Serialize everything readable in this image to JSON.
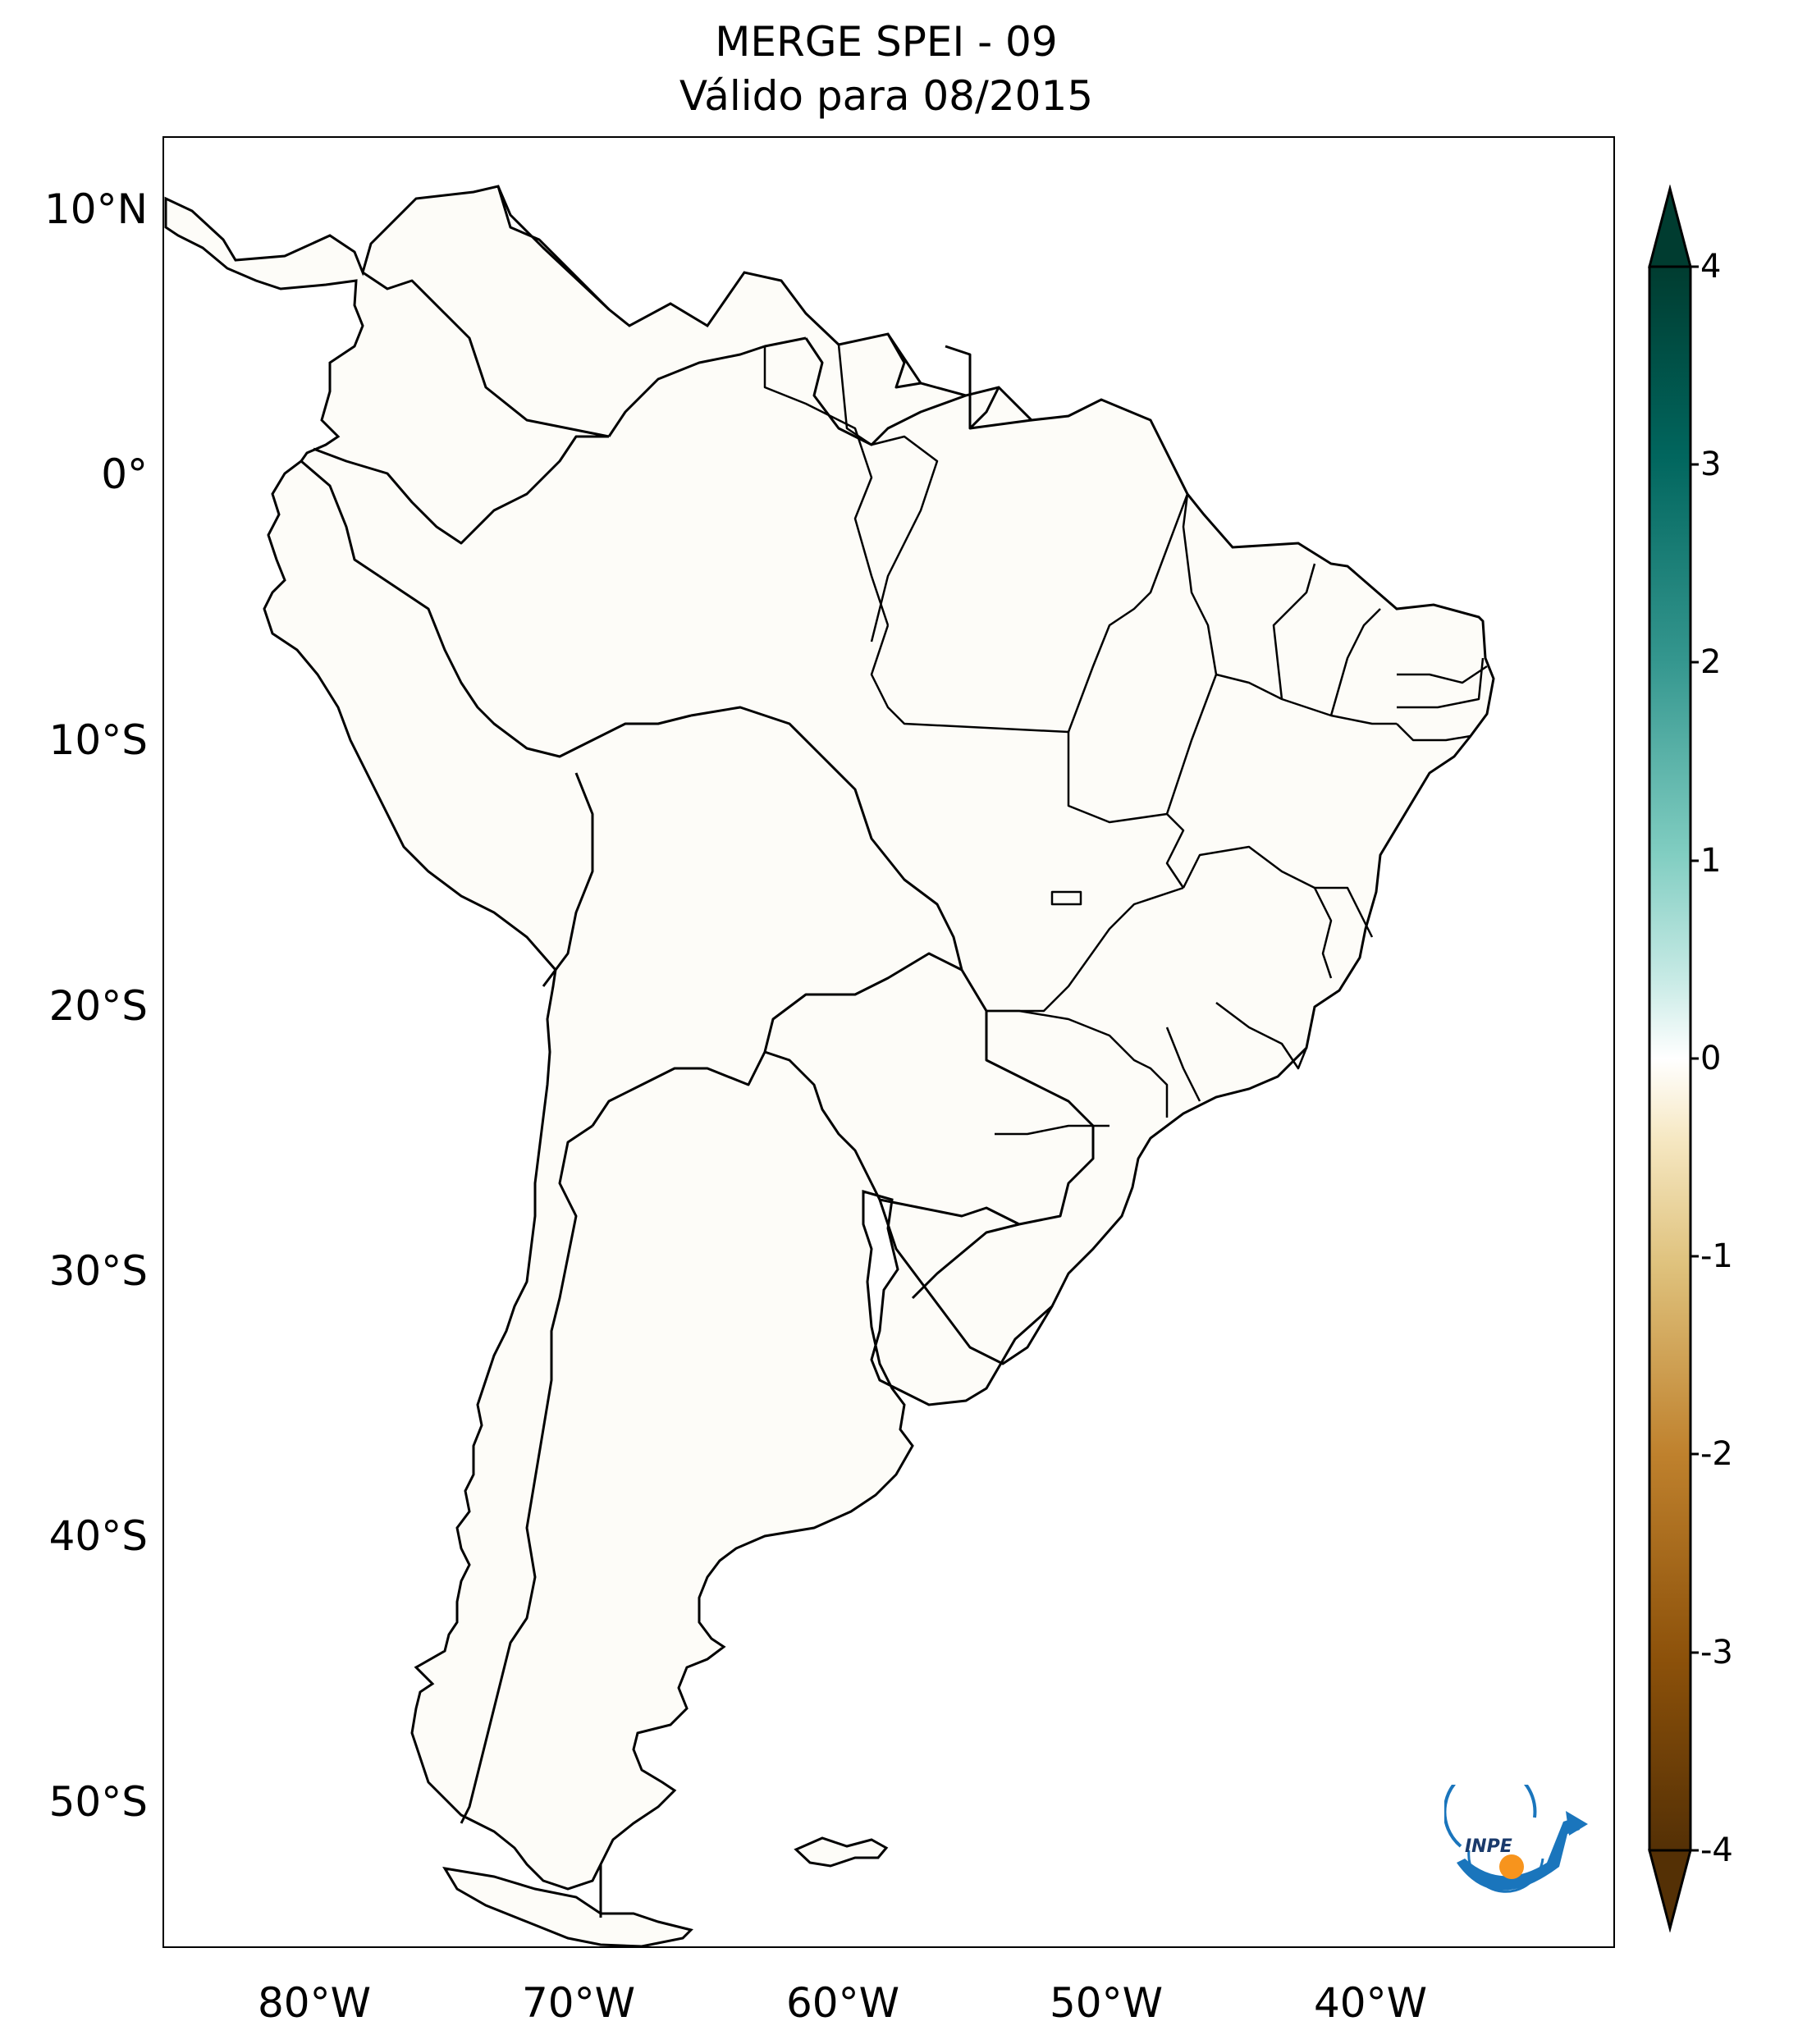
{
  "title": {
    "line1": "MERGE   SPEI - 09",
    "line2": "Válido para 08/2015"
  },
  "axes": {
    "lat_labels": [
      "10°N",
      "0°",
      "10°S",
      "20°S",
      "30°S",
      "40°S",
      "50°S"
    ],
    "lon_labels": [
      "80°W",
      "70°W",
      "60°W",
      "50°W",
      "40°W"
    ]
  },
  "colorbar": {
    "ticks": [
      "4",
      "3",
      "2",
      "1",
      "0",
      "-1",
      "-2",
      "-3",
      "-4"
    ],
    "range": [
      -4,
      4
    ],
    "extend": "both",
    "colormap": "BrBG",
    "colors": {
      "dry_extreme": "#543005",
      "dry_strong": "#8c510a",
      "dry_moderate": "#bf812d",
      "dry_mild": "#dfc27d",
      "dry_light": "#f6e8c3",
      "neutral": "#ffffff",
      "wet_light": "#c7eae5",
      "wet_mild": "#80cdc1",
      "wet_moderate": "#35978f",
      "wet_strong": "#01665e",
      "wet_extreme": "#003c30"
    }
  },
  "logo": {
    "text": "INPE",
    "colors": {
      "arc": "#1a75bc",
      "dot": "#f7941d"
    }
  }
}
